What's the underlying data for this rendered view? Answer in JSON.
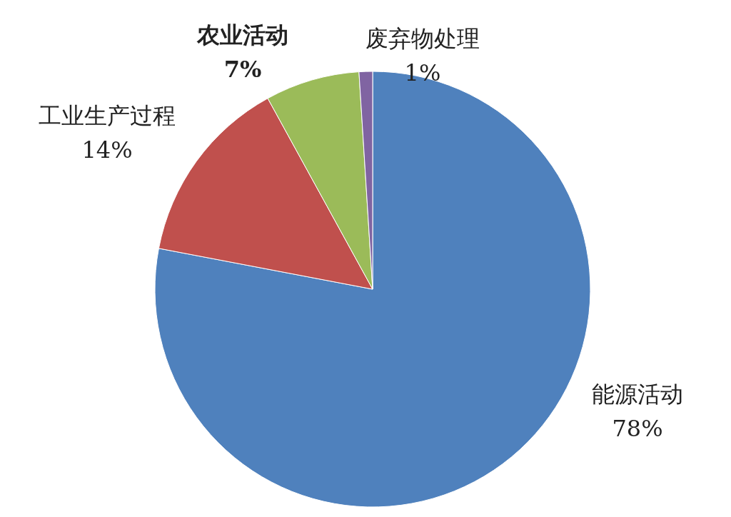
{
  "chart_data": {
    "type": "pie",
    "categories": [
      "能源活动",
      "工业生产过程",
      "农业活动",
      "废弃物处理"
    ],
    "values": [
      78,
      14,
      7,
      1
    ],
    "colors": [
      "#4f81bd",
      "#c0504d",
      "#9bbb59",
      "#8064a2"
    ],
    "value_labels": [
      "78%",
      "14%",
      "7%",
      "1%"
    ],
    "legend": false
  }
}
